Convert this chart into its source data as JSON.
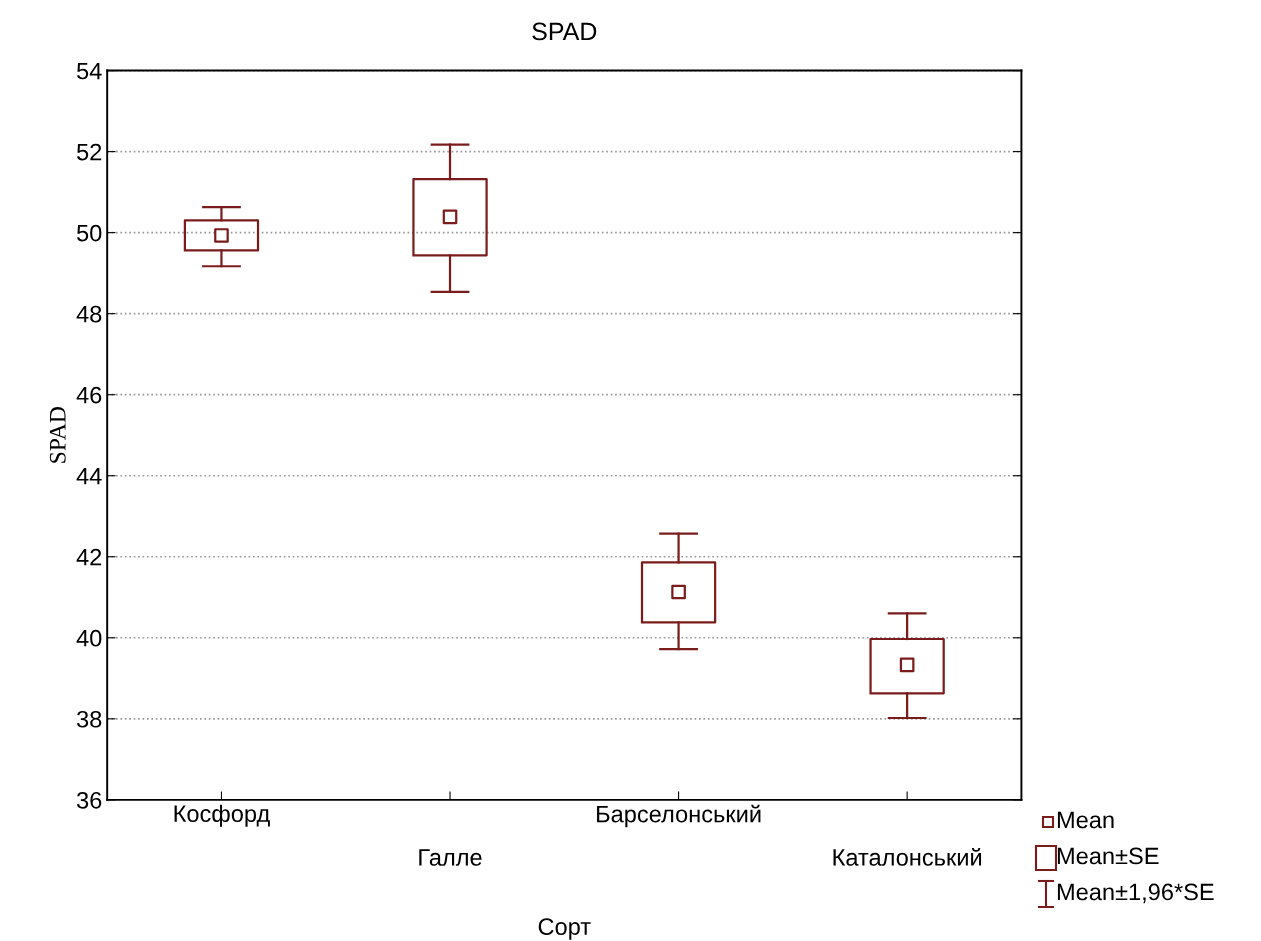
{
  "chart_data": {
    "type": "box",
    "title": "SPAD",
    "xlabel": "Сорт",
    "ylabel": "SPAD",
    "categories": [
      "Косфорд",
      "Галле",
      "Барселонський",
      "Каталонський"
    ],
    "boxes": [
      {
        "low": 49.17,
        "q1": 49.56,
        "q3": 50.3,
        "high": 50.63,
        "mean": 49.93
      },
      {
        "low": 48.54,
        "q1": 49.44,
        "q3": 51.32,
        "high": 52.17,
        "mean": 50.39
      },
      {
        "low": 39.72,
        "q1": 40.38,
        "q3": 41.86,
        "high": 42.57,
        "mean": 41.13
      },
      {
        "low": 38.02,
        "q1": 38.63,
        "q3": 39.97,
        "high": 40.6,
        "mean": 39.33
      }
    ],
    "color": "#7b1c1c",
    "ylim": [
      36,
      54
    ],
    "yticks": [
      36,
      38,
      40,
      42,
      44,
      46,
      48,
      50,
      52,
      54
    ],
    "grid": "y",
    "annotations": [
      "Mean",
      "Mean±SE",
      "Mean±1,96*SE"
    ]
  }
}
